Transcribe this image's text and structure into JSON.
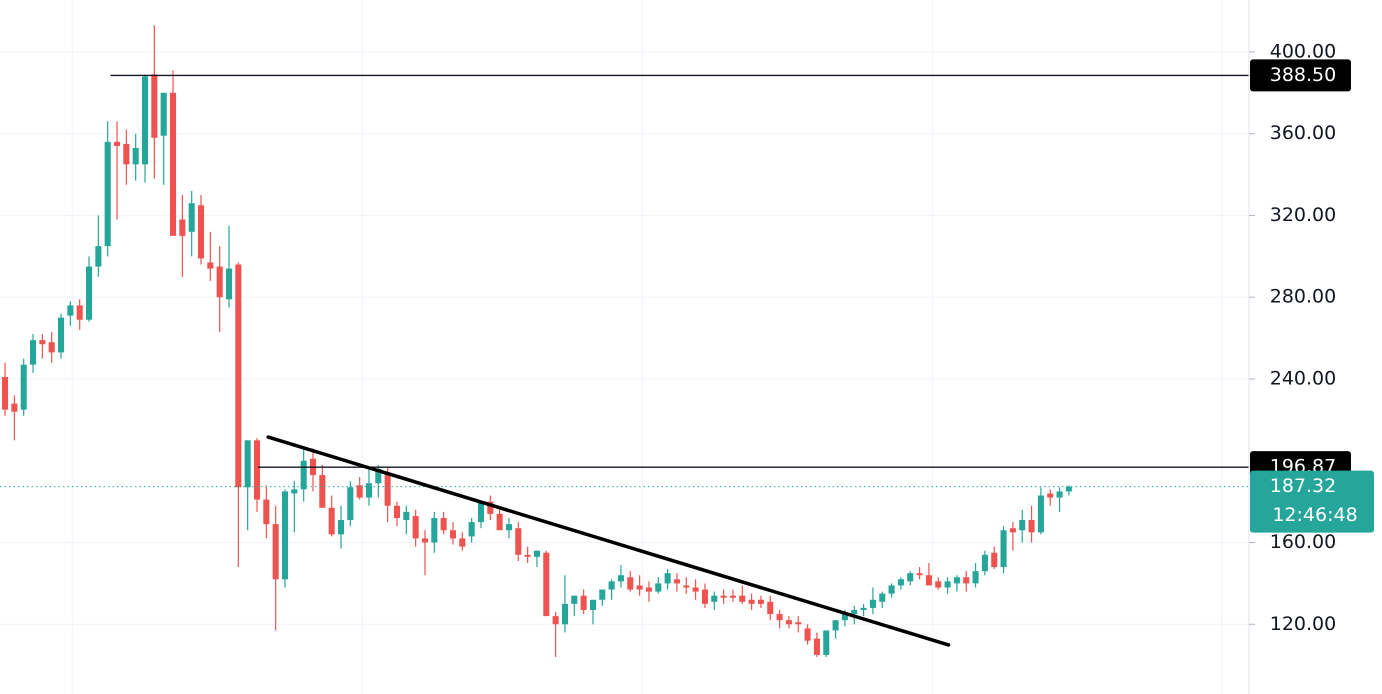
{
  "chart_data": {
    "type": "candlestick",
    "up_color": "#26a69a",
    "down_color": "#ef5350",
    "grid": true,
    "xlim": [
      -0.54,
      133.3
    ],
    "xticks": [
      7.2,
      38.3,
      68.3,
      99.4,
      130.4
    ],
    "ylim": [
      85.9,
      425.4
    ],
    "yticks": [
      {
        "value": 120,
        "label": "120.00"
      },
      {
        "value": 160,
        "label": "160.00"
      },
      {
        "value": 240,
        "label": "240.00"
      },
      {
        "value": 280,
        "label": "280.00"
      },
      {
        "value": 320,
        "label": "320.00"
      },
      {
        "value": 360,
        "label": "360.00"
      },
      {
        "value": 400,
        "label": "400.00"
      }
    ],
    "ohlc": [
      [
        241,
        248,
        222,
        225
      ],
      [
        228,
        232,
        210,
        224
      ],
      [
        225,
        250,
        222,
        247
      ],
      [
        247,
        262,
        243,
        259
      ],
      [
        259,
        262,
        250,
        257
      ],
      [
        258,
        263,
        248,
        253
      ],
      [
        253,
        272,
        250,
        270
      ],
      [
        271,
        278,
        266,
        276
      ],
      [
        276,
        279,
        264,
        269
      ],
      [
        269,
        300,
        268,
        295
      ],
      [
        295,
        320,
        290,
        305
      ],
      [
        305,
        366,
        300,
        356
      ],
      [
        356,
        366,
        318,
        354
      ],
      [
        355,
        362,
        335,
        345
      ],
      [
        345,
        360,
        337,
        353
      ],
      [
        345,
        389,
        336,
        388
      ],
      [
        389,
        413,
        338,
        358
      ],
      [
        359,
        380,
        335,
        380
      ],
      [
        380,
        391,
        311,
        310
      ],
      [
        318,
        330,
        290,
        310
      ],
      [
        312,
        332,
        300,
        326
      ],
      [
        325,
        330,
        296,
        299
      ],
      [
        297,
        312,
        288,
        294
      ],
      [
        295,
        305,
        263,
        280
      ],
      [
        279,
        315,
        275,
        294
      ],
      [
        296,
        297,
        148,
        187
      ],
      [
        187,
        210,
        166,
        210
      ],
      [
        210,
        211,
        175,
        181
      ],
      [
        181,
        188,
        162,
        169
      ],
      [
        169,
        178,
        117,
        142
      ],
      [
        142,
        186,
        138,
        185
      ],
      [
        184,
        190,
        165,
        186
      ],
      [
        186,
        206,
        180,
        200
      ],
      [
        201,
        206,
        185,
        193
      ],
      [
        193,
        198,
        178,
        177
      ],
      [
        177,
        183,
        163,
        164
      ],
      [
        164,
        178,
        157,
        171
      ],
      [
        171,
        190,
        168,
        187
      ],
      [
        188,
        192,
        181,
        182
      ],
      [
        182,
        196,
        178,
        189
      ],
      [
        189,
        198,
        182,
        196
      ],
      [
        194,
        197,
        170,
        178
      ],
      [
        178,
        180,
        168,
        172
      ],
      [
        171,
        178,
        164,
        175
      ],
      [
        173,
        176,
        158,
        162
      ],
      [
        162,
        166,
        144,
        160
      ],
      [
        160,
        175,
        155,
        172
      ],
      [
        172,
        175,
        164,
        166
      ],
      [
        166,
        170,
        159,
        162
      ],
      [
        162,
        165,
        156,
        158
      ],
      [
        163,
        172,
        160,
        170
      ],
      [
        170,
        180,
        167,
        180
      ],
      [
        180,
        183,
        171,
        174
      ],
      [
        174,
        177,
        167,
        166
      ],
      [
        166,
        172,
        162,
        169
      ],
      [
        167,
        170,
        151,
        154
      ],
      [
        154,
        158,
        150,
        153
      ],
      [
        153,
        156,
        148,
        156
      ],
      [
        155,
        156,
        124,
        124
      ],
      [
        124,
        126,
        104,
        120
      ],
      [
        120,
        144,
        116,
        130
      ],
      [
        130,
        133,
        124,
        134
      ],
      [
        134,
        137,
        125,
        127
      ],
      [
        127,
        131,
        120,
        132
      ],
      [
        132,
        137,
        129,
        137
      ],
      [
        137,
        142,
        132,
        141
      ],
      [
        141,
        149,
        138,
        144
      ],
      [
        143,
        146,
        136,
        137
      ],
      [
        139,
        144,
        134,
        137
      ],
      [
        138,
        141,
        131,
        136
      ],
      [
        136,
        143,
        135,
        140
      ],
      [
        140,
        147,
        137,
        145
      ],
      [
        142,
        145,
        136,
        140
      ],
      [
        139,
        143,
        135,
        138
      ],
      [
        138,
        142,
        132,
        136
      ],
      [
        137,
        140,
        128,
        130
      ],
      [
        131,
        136,
        127,
        134
      ],
      [
        134,
        137,
        130,
        133
      ],
      [
        134,
        137,
        131,
        133
      ],
      [
        134,
        139,
        130,
        131
      ],
      [
        132,
        135,
        127,
        130
      ],
      [
        132,
        134,
        128,
        130
      ],
      [
        131,
        134,
        122,
        125
      ],
      [
        125,
        127,
        118,
        122
      ],
      [
        122,
        124,
        118,
        120
      ],
      [
        121,
        124,
        116,
        120
      ],
      [
        118,
        120,
        110,
        112
      ],
      [
        113,
        116,
        104,
        105
      ],
      [
        105,
        115,
        104,
        117
      ],
      [
        117,
        122,
        113,
        122
      ],
      [
        122,
        127,
        119,
        125
      ],
      [
        125,
        129,
        120,
        127
      ],
      [
        127,
        130,
        124,
        128
      ],
      [
        128,
        138,
        125,
        132
      ],
      [
        131,
        136,
        128,
        135
      ],
      [
        135,
        140,
        133,
        139
      ],
      [
        139,
        143,
        137,
        142
      ],
      [
        141,
        146,
        139,
        145
      ],
      [
        145,
        148,
        142,
        144
      ],
      [
        144,
        150,
        139,
        139
      ],
      [
        141,
        143,
        137,
        138
      ],
      [
        138,
        143,
        135,
        141
      ],
      [
        140,
        144,
        136,
        143
      ],
      [
        143,
        146,
        136,
        140
      ],
      [
        140,
        150,
        138,
        146
      ],
      [
        146,
        156,
        144,
        154
      ],
      [
        155,
        158,
        147,
        148
      ],
      [
        148,
        168,
        145,
        166
      ],
      [
        167,
        170,
        156,
        165
      ],
      [
        166,
        176,
        160,
        171
      ],
      [
        171,
        178,
        160,
        165
      ],
      [
        165,
        187,
        164,
        183
      ],
      [
        184,
        186,
        178,
        182
      ],
      [
        182,
        187,
        175,
        185
      ],
      [
        185,
        188,
        183,
        187.32
      ]
    ],
    "hlines": [
      {
        "value": 388.5,
        "label": "388.50",
        "from": 11.3
      },
      {
        "value": 196.87,
        "label": "196.87",
        "from": 27.1
      }
    ],
    "trendline": {
      "x": [
        28.2,
        101.1
      ],
      "y": [
        211.6,
        109.9
      ]
    },
    "last_price": {
      "value": 187.32,
      "label": "187.32",
      "time": "12:46:48"
    }
  }
}
